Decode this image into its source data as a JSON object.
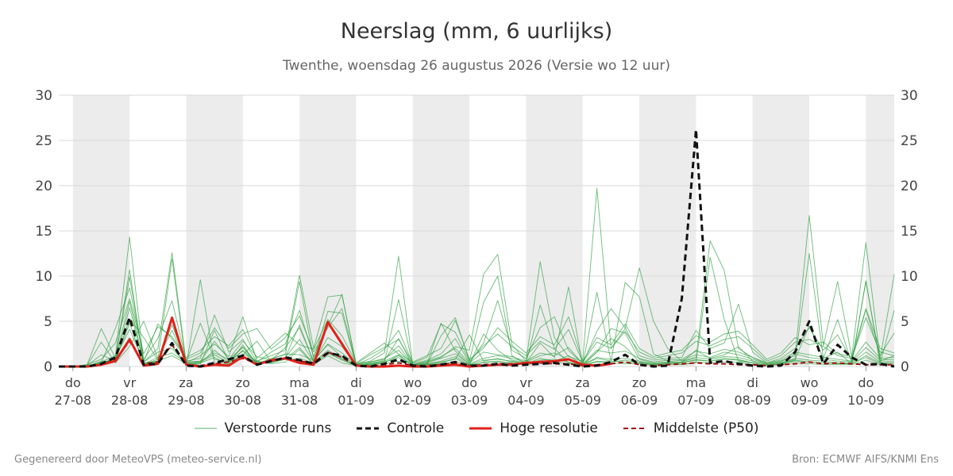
{
  "header": {
    "title": "Neerslag (mm, 6 uurlijks)",
    "subtitle": "Twenthe, woensdag 26 augustus 2026 (Versie wo 12 uur)"
  },
  "footer": {
    "left": "Gegenereerd door MeteoVPS (meteo-service.nl)",
    "right": "Bron: ECMWF AIFS/KNMI Ens"
  },
  "colors": {
    "ensemble": "#2e9e3e",
    "control": "#111111",
    "high_res": "#e0211a",
    "median": "#a01010",
    "band": "#ececec",
    "grid": "#d9d9d9"
  },
  "legend": [
    {
      "label": "Verstoorde runs",
      "style": "ensemble"
    },
    {
      "label": "Controle",
      "style": "control"
    },
    {
      "label": "Hoge resolutie",
      "style": "high_res"
    },
    {
      "label": "Middelste (P50)",
      "style": "median"
    }
  ],
  "chart_data": {
    "type": "line",
    "title": "Neerslag (mm, 6 uurlijks)",
    "subtitle": "Twenthe, woensdag 26 augustus 2026 (Versie wo 12 uur)",
    "x_unit": "days since 27-08 00:00 (6-hourly steps)",
    "xlim": [
      -0.25,
      14.5
    ],
    "ylim": [
      0,
      30
    ],
    "yticks": [
      0,
      5,
      10,
      15,
      20,
      25,
      30
    ],
    "grid": true,
    "legend_position": "bottom",
    "x_ticks": [
      {
        "day": "do",
        "date": "27-08"
      },
      {
        "day": "vr",
        "date": "28-08"
      },
      {
        "day": "za",
        "date": "29-08"
      },
      {
        "day": "zo",
        "date": "30-08"
      },
      {
        "day": "ma",
        "date": "31-08"
      },
      {
        "day": "di",
        "date": "01-09"
      },
      {
        "day": "wo",
        "date": "02-09"
      },
      {
        "day": "do",
        "date": "03-09"
      },
      {
        "day": "vr",
        "date": "04-09"
      },
      {
        "day": "za",
        "date": "05-09"
      },
      {
        "day": "zo",
        "date": "06-09"
      },
      {
        "day": "ma",
        "date": "07-09"
      },
      {
        "day": "di",
        "date": "08-09"
      },
      {
        "day": "wo",
        "date": "09-09"
      },
      {
        "day": "do",
        "date": "10-09"
      }
    ],
    "shaded_days": [
      0,
      2,
      4,
      6,
      8,
      10,
      12,
      14
    ],
    "series_control": {
      "name": "Controle",
      "x": [
        -0.25,
        0,
        0.25,
        0.5,
        0.75,
        1,
        1.25,
        1.5,
        1.75,
        2,
        2.25,
        2.5,
        2.75,
        3,
        3.25,
        3.5,
        3.75,
        4,
        4.25,
        4.5,
        4.75,
        5,
        5.25,
        5.5,
        5.75,
        6,
        6.25,
        6.5,
        6.75,
        7,
        7.25,
        7.5,
        7.75,
        8,
        8.25,
        8.5,
        8.75,
        9,
        9.25,
        9.5,
        9.75,
        10,
        10.25,
        10.5,
        10.75,
        11,
        11.25,
        11.5,
        11.75,
        12,
        12.25,
        12.5,
        12.75,
        13,
        13.25,
        13.5,
        13.75,
        14,
        14.25,
        14.5
      ],
      "y": [
        0,
        0,
        0,
        0.3,
        1,
        5.4,
        0.2,
        0.3,
        2.6,
        0.1,
        0,
        0.4,
        0.8,
        1.2,
        0.2,
        0.6,
        1.0,
        0.7,
        0.3,
        1.5,
        1.2,
        0.1,
        0,
        0.3,
        0.8,
        0.1,
        0,
        0.2,
        0.5,
        0.1,
        0.1,
        0.3,
        0.1,
        0.2,
        0.3,
        0.4,
        0.2,
        0,
        0.1,
        0.5,
        1.3,
        0.2,
        0,
        0.1,
        7.5,
        26.2,
        0.4,
        0.6,
        0.3,
        0.1,
        0,
        0.1,
        1.6,
        5.0,
        0.3,
        2.4,
        1.0,
        0.2,
        0.3,
        0
      ]
    },
    "series_high_res": {
      "name": "Hoge resolutie",
      "x": [
        -0.25,
        0,
        0.25,
        0.5,
        0.75,
        1,
        1.25,
        1.5,
        1.75,
        2,
        2.25,
        2.5,
        2.75,
        3,
        3.25,
        3.5,
        3.75,
        4,
        4.25,
        4.5,
        4.75,
        5,
        5.25,
        5.5,
        5.75,
        6,
        6.25,
        6.5,
        6.75,
        7,
        7.25,
        7.5,
        7.75,
        8,
        8.25,
        8.5,
        8.75,
        9,
        9.25,
        9.5
      ],
      "y": [
        0,
        0,
        0,
        0.2,
        0.6,
        3.0,
        0.1,
        0.3,
        5.4,
        0.2,
        0,
        0.2,
        0.1,
        1.1,
        0.2,
        0.7,
        0.9,
        0.4,
        0.2,
        4.9,
        2.5,
        0.1,
        0,
        0,
        0.1,
        0,
        0,
        0.1,
        0.2,
        0,
        0.1,
        0.2,
        0.2,
        0.4,
        0.5,
        0.6,
        0.8,
        0.2,
        0.1,
        0.3
      ]
    },
    "series_median": {
      "name": "Middelste (P50)",
      "x": [
        -0.25,
        0,
        0.25,
        0.5,
        0.75,
        1,
        1.25,
        1.5,
        1.75,
        2,
        2.25,
        2.5,
        2.75,
        3,
        3.25,
        3.5,
        3.75,
        4,
        4.25,
        4.5,
        4.75,
        5,
        5.25,
        5.5,
        5.75,
        6,
        6.25,
        6.5,
        6.75,
        7,
        7.25,
        7.5,
        7.75,
        8,
        8.25,
        8.5,
        8.75,
        9,
        9.25,
        9.5,
        9.75,
        10,
        10.25,
        10.5,
        10.75,
        11,
        11.25,
        11.5,
        11.75,
        12,
        12.25,
        12.5,
        12.75,
        13,
        13.25,
        13.5,
        13.75,
        14,
        14.25,
        14.5
      ],
      "y": [
        0,
        0,
        0,
        0.2,
        0.8,
        2.8,
        0.3,
        0.5,
        2.4,
        0.2,
        0.1,
        0.3,
        0.5,
        0.9,
        0.3,
        0.6,
        0.9,
        0.6,
        0.4,
        1.6,
        1.0,
        0.1,
        0,
        0.2,
        0.4,
        0.1,
        0.1,
        0.2,
        0.4,
        0.1,
        0.2,
        0.3,
        0.3,
        0.3,
        0.4,
        0.3,
        0.3,
        0.1,
        0.2,
        0.3,
        0.5,
        0.2,
        0.1,
        0.2,
        0.3,
        0.4,
        0.3,
        0.3,
        0.2,
        0.2,
        0.1,
        0.2,
        0.3,
        0.5,
        0.3,
        0.4,
        0.3,
        0.2,
        0.2,
        0.2
      ]
    },
    "ensemble": {
      "name": "Verstoorde runs",
      "x": [
        -0.25,
        0,
        0.25,
        0.5,
        0.75,
        1,
        1.25,
        1.5,
        1.75,
        2,
        2.25,
        2.5,
        2.75,
        3,
        3.25,
        3.5,
        3.75,
        4,
        4.25,
        4.5,
        4.75,
        5,
        5.25,
        5.5,
        5.75,
        6,
        6.25,
        6.5,
        6.75,
        7,
        7.25,
        7.5,
        7.75,
        8,
        8.25,
        8.5,
        8.75,
        9,
        9.25,
        9.5,
        9.75,
        10,
        10.25,
        10.5,
        10.75,
        11,
        11.25,
        11.5,
        11.75,
        12,
        12.25,
        12.5,
        12.75,
        13,
        13.25,
        13.5,
        13.75,
        14,
        14.25,
        14.5
      ],
      "members": [
        [
          0,
          0,
          0,
          0.5,
          1.2,
          14.3,
          0.5,
          2.0,
          12.6,
          0.4,
          1.2,
          2.5,
          1.1,
          5.5,
          0.6,
          1.2,
          1.8,
          10.1,
          2.0,
          7.7,
          7.9,
          0.3,
          0.6,
          1.5,
          12.2,
          0.2,
          0.5,
          1.0,
          2.2,
          1.8,
          10.2,
          12.4,
          2.4,
          0.6,
          11.6,
          3.2,
          1.1,
          0.6,
          19.7,
          2.0,
          4.2,
          10.9,
          5.0,
          2.0,
          0.6,
          1.0,
          13.9,
          10.6,
          2.0,
          1.0,
          0.3,
          0.6,
          1.2,
          16.7,
          2.3,
          9.4,
          1.1,
          13.7,
          0.8,
          10.2
        ],
        [
          0,
          0,
          0,
          0.3,
          0.8,
          10.7,
          0.2,
          0.8,
          11.9,
          0.1,
          9.6,
          0.4,
          0.3,
          2.4,
          0.2,
          0.9,
          1.3,
          9.4,
          0.8,
          6.1,
          5.9,
          0.1,
          0.2,
          0.5,
          7.4,
          0.1,
          0.2,
          3.4,
          5.4,
          0.6,
          7.1,
          10.0,
          1.2,
          0.3,
          6.8,
          2.0,
          0.4,
          0.2,
          8.2,
          0.6,
          9.3,
          7.7,
          1.4,
          0.6,
          0.2,
          0.4,
          12.1,
          5.2,
          0.6,
          0.4,
          0.1,
          0.3,
          0.7,
          12.5,
          0.9,
          5.2,
          0.4,
          9.5,
          0.3,
          6.2
        ],
        [
          0,
          0,
          0.1,
          0.4,
          4.2,
          8.7,
          0.8,
          3.1,
          7.3,
          0.6,
          0.9,
          5.7,
          1.6,
          3.0,
          0.5,
          1.6,
          2.5,
          6.2,
          1.1,
          4.5,
          8.0,
          0.2,
          0.9,
          1.9,
          4.0,
          0.3,
          0.7,
          1.4,
          3.1,
          0.4,
          2.6,
          7.3,
          1.8,
          0.9,
          4.3,
          5.5,
          1.8,
          0.3,
          3.9,
          6.4,
          4.3,
          1.2,
          0.7,
          0.9,
          1.0,
          4.0,
          2.0,
          2.6,
          6.9,
          1.6,
          0.4,
          0.9,
          2.0,
          4.3,
          1.8,
          3.5,
          0.7,
          6.3,
          1.2,
          3.7
        ],
        [
          0,
          0,
          0,
          0.2,
          0.6,
          6.5,
          0.3,
          0.5,
          5.4,
          0.2,
          0.3,
          4.0,
          0.6,
          1.7,
          0.3,
          0.6,
          1.0,
          4.6,
          0.5,
          3.2,
          2.2,
          0.1,
          0.3,
          0.7,
          3.1,
          0.1,
          0.3,
          4.8,
          1.7,
          0.2,
          3.6,
          1.8,
          0.7,
          0.4,
          2.6,
          1.0,
          8.8,
          0.1,
          1.6,
          3.1,
          2.2,
          0.5,
          0.3,
          0.4,
          0.5,
          1.8,
          0.9,
          1.3,
          2.2,
          0.6,
          0.2,
          0.4,
          0.8,
          4.5,
          0.9,
          1.6,
          0.3,
          9.4,
          0.6,
          1.2
        ],
        [
          0,
          0,
          0.2,
          0.8,
          2.6,
          7.5,
          1.4,
          4.4,
          3.3,
          1.0,
          1.8,
          3.3,
          2.3,
          4.1,
          0.9,
          2.3,
          3.7,
          2.4,
          1.9,
          5.2,
          3.4,
          0.4,
          1.5,
          2.6,
          1.4,
          0.5,
          1.2,
          2.0,
          5.1,
          0.8,
          2.0,
          4.3,
          2.8,
          1.5,
          3.3,
          2.4,
          5.5,
          0.6,
          3.2,
          2.4,
          4.7,
          2.0,
          1.1,
          1.5,
          1.8,
          3.4,
          2.7,
          3.6,
          3.9,
          2.4,
          0.8,
          1.5,
          3.2,
          2.4,
          2.7,
          1.4,
          1.1,
          6.4,
          2.0,
          1.5
        ],
        [
          0,
          0,
          0,
          0.3,
          1.0,
          4.1,
          0.5,
          1.6,
          2.0,
          0.3,
          0.6,
          1.5,
          0.8,
          2.1,
          0.4,
          0.8,
          1.4,
          1.3,
          0.7,
          2.4,
          1.1,
          0.2,
          0.5,
          0.9,
          1.8,
          0.2,
          0.4,
          0.9,
          1.4,
          0.3,
          0.9,
          1.2,
          0.9,
          0.5,
          1.2,
          1.5,
          0.8,
          0.2,
          1.6,
          4.2,
          3.7,
          0.8,
          0.4,
          0.5,
          0.7,
          1.3,
          1.0,
          1.6,
          1.3,
          0.8,
          0.3,
          0.5,
          1.4,
          1.0,
          0.8,
          0.6,
          0.5,
          2.1,
          0.7,
          0.8
        ],
        [
          0,
          0,
          0.1,
          2.7,
          0.4,
          2.2,
          5.0,
          0.9,
          4.0,
          0.5,
          4.8,
          0.8,
          0.5,
          1.3,
          2.8,
          0.5,
          0.8,
          0.9,
          0.4,
          1.6,
          0.7,
          0.1,
          0.3,
          0.5,
          1.0,
          0.1,
          0.3,
          0.5,
          0.8,
          3.5,
          0.6,
          0.9,
          0.5,
          0.3,
          0.7,
          0.8,
          0.5,
          0.1,
          0.9,
          0.6,
          0.5,
          0.4,
          0.2,
          0.3,
          0.4,
          0.8,
          0.6,
          0.9,
          0.8,
          0.4,
          0.1,
          0.3,
          0.7,
          0.5,
          0.4,
          0.3,
          0.3,
          1.2,
          0.4,
          0.4
        ],
        [
          0,
          0,
          0,
          0.6,
          0.5,
          3.2,
          0.2,
          0.6,
          1.2,
          0.3,
          0.4,
          1.0,
          0.2,
          1.4,
          0.6,
          0.3,
          0.5,
          1.9,
          0.2,
          1.2,
          0.4,
          0.1,
          0.2,
          0.3,
          0.6,
          0.1,
          0.2,
          0.3,
          0.5,
          0.2,
          0.4,
          0.5,
          0.3,
          0.2,
          0.4,
          0.5,
          0.3,
          0.1,
          0.5,
          0.4,
          0.3,
          0.3,
          0.1,
          0.2,
          0.2,
          0.5,
          0.4,
          0.5,
          0.5,
          0.2,
          0.1,
          0.2,
          0.4,
          0.3,
          0.2,
          0.2,
          0.2,
          0.7,
          0.2,
          0.2
        ],
        [
          0,
          0,
          0.2,
          4.2,
          0.9,
          9.9,
          0.5,
          4.7,
          3.1,
          0.8,
          1.5,
          4.3,
          2.0,
          3.6,
          4.2,
          1.9,
          3.2,
          5.6,
          1.6,
          4.3,
          6.4,
          0.3,
          1.3,
          2.1,
          3.0,
          0.4,
          1.0,
          4.7,
          3.8,
          0.6,
          2.3,
          3.6,
          2.2,
          1.2,
          2.8,
          1.9,
          4.1,
          0.5,
          2.7,
          2.0,
          3.9,
          1.6,
          0.9,
          1.2,
          1.5,
          2.8,
          2.3,
          3.0,
          3.3,
          2.0,
          0.6,
          1.2,
          2.7,
          3.0,
          2.2,
          1.2,
          0.9,
          5.4,
          1.6,
          1.2
        ],
        [
          0,
          0,
          0,
          0.3,
          0.7,
          4.8,
          0.3,
          1.0,
          1.5,
          0.4,
          0.5,
          1.3,
          0.4,
          1.8,
          0.5,
          0.6,
          1.0,
          3.0,
          0.5,
          1.8,
          0.9,
          0.1,
          0.4,
          0.6,
          1.3,
          0.2,
          0.3,
          0.6,
          1.1,
          0.2,
          0.7,
          0.8,
          0.6,
          0.3,
          0.9,
          0.6,
          1.2,
          0.2,
          1.0,
          0.8,
          0.9,
          0.6,
          0.3,
          0.4,
          0.5,
          1.0,
          0.8,
          1.1,
          1.0,
          0.6,
          0.2,
          0.4,
          0.9,
          0.7,
          0.6,
          0.4,
          0.4,
          1.6,
          0.5,
          0.6
        ],
        [
          0,
          0,
          0.1,
          1.3,
          0.6,
          5.3,
          3.2,
          0.7,
          4.6,
          0.5,
          0.6,
          2.8,
          0.8,
          2.8,
          1.1,
          0.7,
          2.1,
          4.3,
          0.6,
          2.5,
          1.5,
          0.2,
          0.5,
          0.8,
          2.3,
          0.2,
          0.6,
          1.1,
          2.0,
          0.4,
          1.6,
          1.3,
          1.1,
          0.6,
          1.5,
          1.2,
          2.1,
          0.3,
          1.8,
          1.5,
          1.7,
          0.9,
          0.5,
          0.7,
          0.8,
          1.7,
          1.4,
          1.9,
          1.6,
          1.0,
          0.4,
          0.7,
          1.6,
          1.3,
          1.0,
          0.8,
          0.6,
          2.7,
          0.9,
          1.0
        ],
        [
          0,
          0,
          0,
          0.4,
          0.9,
          7.2,
          0.4,
          0.6,
          2.3,
          0.2,
          0.4,
          1.8,
          0.5,
          2.2,
          0.3,
          0.4,
          0.8,
          2.1,
          0.3,
          1.4,
          0.8,
          0.1,
          0.2,
          0.4,
          1.2,
          0.1,
          0.2,
          0.4,
          0.9,
          0.1,
          0.5,
          0.6,
          0.4,
          0.2,
          0.6,
          0.5,
          0.8,
          0.1,
          0.6,
          0.5,
          0.7,
          0.4,
          0.2,
          0.3,
          0.4,
          0.7,
          0.6,
          0.8,
          0.7,
          0.4,
          0.1,
          0.3,
          0.6,
          0.5,
          0.4,
          0.3,
          0.3,
          1.0,
          0.3,
          0.4
        ]
      ]
    }
  }
}
